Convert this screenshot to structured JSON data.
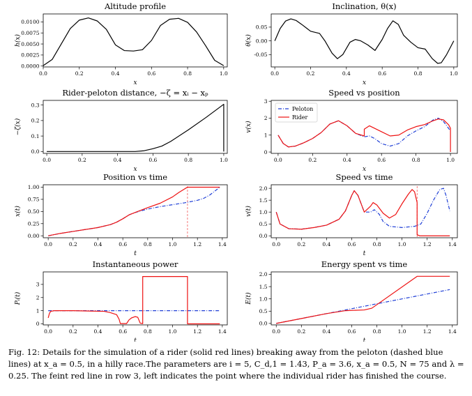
{
  "figure": {
    "caption": "Fig. 12: Details for the simulation of a rider (solid red lines) breaking away from the peloton (dashed blue lines) at x_a = 0.5, in a hilly race.The parameters are i = 5, C_d,1 = 1.43, P_a = 3.6, x_a = 0.5, N = 75 and λ = 0.25. The feint red line in row 3, left indicates the point where the individual rider has finished the course.",
    "colors": {
      "rider": "#ee1111",
      "peloton": "#1f3fd6",
      "single": "#000000"
    }
  },
  "chart_data": [
    {
      "type": "line",
      "title": "Altitude profile",
      "xlabel": "x",
      "ylabel": "h(x)",
      "xlim": [
        0,
        1.02
      ],
      "ylim": [
        -0.0002,
        0.0118
      ],
      "xticks": [
        0.0,
        0.2,
        0.4,
        0.6,
        0.8,
        1.0
      ],
      "yticks": [
        0.0,
        0.0025,
        0.005,
        0.0075,
        0.01
      ],
      "series": [
        {
          "x": [
            0,
            0.05,
            0.1,
            0.15,
            0.2,
            0.25,
            0.3,
            0.35,
            0.4,
            0.45,
            0.5,
            0.55,
            0.6,
            0.65,
            0.7,
            0.75,
            0.8,
            0.85,
            0.9,
            0.95,
            1.0
          ],
          "y": [
            0.0001,
            0.0015,
            0.005,
            0.0085,
            0.0104,
            0.0109,
            0.0102,
            0.0083,
            0.0048,
            0.0035,
            0.0034,
            0.0037,
            0.0058,
            0.0092,
            0.0106,
            0.0108,
            0.0099,
            0.0077,
            0.0046,
            0.0013,
            0.0001
          ]
        }
      ]
    },
    {
      "type": "line",
      "title": "Inclination, θ(x)",
      "xlabel": "x",
      "ylabel": "θ(x)",
      "xlim": [
        -0.02,
        1.02
      ],
      "ylim": [
        -0.095,
        0.098
      ],
      "xticks": [
        0.0,
        0.2,
        0.4,
        0.6,
        0.8,
        1.0
      ],
      "yticks": [
        -0.05,
        0.0,
        0.05
      ],
      "series": [
        {
          "x": [
            0,
            0.03,
            0.06,
            0.09,
            0.12,
            0.15,
            0.18,
            0.2,
            0.25,
            0.28,
            0.32,
            0.35,
            0.38,
            0.42,
            0.45,
            0.48,
            0.52,
            0.56,
            0.6,
            0.63,
            0.66,
            0.69,
            0.72,
            0.76,
            0.8,
            0.84,
            0.88,
            0.91,
            0.93,
            0.96,
            1.0
          ],
          "y": [
            0.0,
            0.045,
            0.072,
            0.08,
            0.074,
            0.06,
            0.045,
            0.035,
            0.027,
            0.0,
            -0.045,
            -0.065,
            -0.05,
            -0.005,
            0.005,
            0.0,
            -0.015,
            -0.035,
            0.005,
            0.045,
            0.073,
            0.06,
            0.02,
            -0.005,
            -0.025,
            -0.03,
            -0.065,
            -0.082,
            -0.08,
            -0.05,
            0.0
          ]
        }
      ]
    },
    {
      "type": "line",
      "title": "Rider-peloton distance, −ζ = xᵢ − xₚ",
      "xlabel": "x",
      "ylabel": "−ζ(x)",
      "xlim": [
        -0.02,
        1.02
      ],
      "ylim": [
        -0.012,
        0.33
      ],
      "xticks": [
        0.0,
        0.2,
        0.4,
        0.6,
        0.8,
        1.0
      ],
      "yticks": [
        0.0,
        0.1,
        0.2,
        0.3
      ],
      "series": [
        {
          "x": [
            0,
            0.3,
            0.5,
            0.55,
            0.6,
            0.65,
            0.7,
            0.8,
            0.9,
            1.0,
            1.0
          ],
          "y": [
            0.0,
            0.0,
            0.0,
            0.005,
            0.018,
            0.035,
            0.065,
            0.14,
            0.22,
            0.305,
            0.0
          ]
        }
      ]
    },
    {
      "type": "line",
      "title": "Speed vs position",
      "xlabel": "x",
      "ylabel": "v(x)",
      "xlim": [
        -0.04,
        1.04
      ],
      "ylim": [
        -0.08,
        3.05
      ],
      "xticks": [
        0.0,
        0.2,
        0.4,
        0.6,
        0.8,
        1.0
      ],
      "yticks": [
        0,
        1,
        2,
        3
      ],
      "legend": {
        "placement": "top-left",
        "entries": [
          "Peloton",
          "Rider"
        ]
      },
      "series": [
        {
          "name": "Peloton",
          "style": "dashdot",
          "x": [
            0,
            0.03,
            0.06,
            0.1,
            0.15,
            0.2,
            0.25,
            0.3,
            0.35,
            0.4,
            0.45,
            0.5,
            0.53,
            0.56,
            0.6,
            0.65,
            0.7,
            0.75,
            0.8,
            0.85,
            0.9,
            0.93,
            0.96,
            1.0
          ],
          "y": [
            1.0,
            0.5,
            0.3,
            0.35,
            0.55,
            0.8,
            1.15,
            1.65,
            1.85,
            1.55,
            1.1,
            0.9,
            0.95,
            0.8,
            0.5,
            0.35,
            0.5,
            0.95,
            1.25,
            1.5,
            1.9,
            2.0,
            1.8,
            1.25
          ]
        },
        {
          "name": "Rider",
          "style": "solid",
          "x": [
            0,
            0.03,
            0.06,
            0.1,
            0.15,
            0.2,
            0.25,
            0.3,
            0.35,
            0.4,
            0.45,
            0.5,
            0.5,
            0.53,
            0.56,
            0.6,
            0.65,
            0.7,
            0.75,
            0.8,
            0.85,
            0.9,
            0.93,
            0.96,
            0.99,
            1.0,
            1.0
          ],
          "y": [
            1.0,
            0.5,
            0.3,
            0.35,
            0.55,
            0.8,
            1.15,
            1.65,
            1.85,
            1.55,
            1.1,
            0.95,
            1.35,
            1.55,
            1.4,
            1.2,
            0.95,
            1.0,
            1.3,
            1.5,
            1.62,
            1.85,
            1.95,
            1.9,
            1.6,
            1.4,
            0.0
          ]
        }
      ]
    },
    {
      "type": "line",
      "title": "Position vs time",
      "xlabel": "t",
      "ylabel": "x(t)",
      "xlim": [
        -0.04,
        1.44
      ],
      "ylim": [
        -0.04,
        1.05
      ],
      "xticks": [
        0.0,
        0.2,
        0.4,
        0.6,
        0.8,
        1.0,
        1.2,
        1.4
      ],
      "yticks": [
        0.0,
        0.25,
        0.5,
        0.75,
        1.0
      ],
      "finish_marker_t": 1.12,
      "series": [
        {
          "name": "Peloton",
          "style": "dashdot",
          "x": [
            0,
            0.1,
            0.2,
            0.3,
            0.4,
            0.5,
            0.55,
            0.6,
            0.65,
            0.7,
            0.8,
            0.9,
            1.0,
            1.1,
            1.2,
            1.25,
            1.3,
            1.35,
            1.38
          ],
          "y": [
            0.0,
            0.05,
            0.09,
            0.13,
            0.17,
            0.23,
            0.28,
            0.35,
            0.43,
            0.48,
            0.55,
            0.6,
            0.64,
            0.68,
            0.73,
            0.77,
            0.84,
            0.94,
            1.0
          ]
        },
        {
          "name": "Rider",
          "style": "solid",
          "x": [
            0,
            0.1,
            0.2,
            0.3,
            0.4,
            0.5,
            0.55,
            0.6,
            0.65,
            0.7,
            0.8,
            0.9,
            1.0,
            1.05,
            1.1,
            1.12,
            1.38
          ],
          "y": [
            0.0,
            0.05,
            0.09,
            0.13,
            0.17,
            0.23,
            0.28,
            0.35,
            0.43,
            0.48,
            0.58,
            0.67,
            0.8,
            0.89,
            0.97,
            1.0,
            1.0
          ]
        }
      ]
    },
    {
      "type": "line",
      "title": "Speed vs time",
      "xlabel": "t",
      "ylabel": "v(t)",
      "xlim": [
        -0.04,
        1.44
      ],
      "ylim": [
        -0.08,
        2.15
      ],
      "xticks": [
        0.0,
        0.2,
        0.4,
        0.6,
        0.8,
        1.0,
        1.2,
        1.4
      ],
      "yticks": [
        0.0,
        0.5,
        1.0,
        1.5,
        2.0
      ],
      "finish_marker_t": 1.12,
      "series": [
        {
          "name": "Peloton",
          "style": "dashdot",
          "x": [
            0,
            0.03,
            0.1,
            0.2,
            0.3,
            0.4,
            0.5,
            0.55,
            0.6,
            0.62,
            0.65,
            0.7,
            0.75,
            0.78,
            0.82,
            0.85,
            0.9,
            1.0,
            1.1,
            1.15,
            1.2,
            1.25,
            1.3,
            1.33,
            1.35,
            1.38
          ],
          "y": [
            1.0,
            0.5,
            0.3,
            0.28,
            0.35,
            0.45,
            0.7,
            1.05,
            1.7,
            1.9,
            1.7,
            1.0,
            1.0,
            1.1,
            0.9,
            0.6,
            0.4,
            0.35,
            0.4,
            0.5,
            0.95,
            1.5,
            1.95,
            2.0,
            1.7,
            1.05
          ]
        },
        {
          "name": "Rider",
          "style": "solid",
          "x": [
            0,
            0.03,
            0.1,
            0.2,
            0.3,
            0.4,
            0.5,
            0.55,
            0.6,
            0.62,
            0.65,
            0.7,
            0.75,
            0.77,
            0.8,
            0.85,
            0.9,
            0.95,
            1.0,
            1.05,
            1.08,
            1.1,
            1.12,
            1.12,
            1.14,
            1.38
          ],
          "y": [
            1.0,
            0.5,
            0.3,
            0.28,
            0.35,
            0.45,
            0.7,
            1.05,
            1.7,
            1.9,
            1.7,
            1.0,
            1.25,
            1.4,
            1.3,
            0.95,
            0.75,
            0.9,
            1.35,
            1.75,
            1.95,
            1.85,
            1.4,
            0.05,
            0.0,
            0.0
          ]
        }
      ]
    },
    {
      "type": "line",
      "title": "Instantaneous power",
      "xlabel": "t",
      "ylabel": "Pᵢ(t)",
      "xlim": [
        -0.04,
        1.44
      ],
      "ylim": [
        -0.08,
        3.95
      ],
      "xticks": [
        0.0,
        0.2,
        0.4,
        0.6,
        0.8,
        1.0,
        1.2,
        1.4
      ],
      "yticks": [
        0,
        1,
        2,
        3
      ],
      "series": [
        {
          "name": "Peloton",
          "style": "dashdot",
          "x": [
            0,
            0.2,
            0.4,
            0.6,
            0.8,
            1.0,
            1.2,
            1.38
          ],
          "y": [
            1.0,
            1.0,
            1.0,
            1.0,
            1.0,
            1.0,
            1.0,
            1.0
          ]
        },
        {
          "name": "Rider",
          "style": "solid",
          "x": [
            0,
            0.01,
            0.02,
            0.05,
            0.2,
            0.45,
            0.5,
            0.55,
            0.57,
            0.58,
            0.63,
            0.65,
            0.67,
            0.7,
            0.72,
            0.74,
            0.76,
            0.76,
            1.12,
            1.12,
            1.38
          ],
          "y": [
            0.45,
            0.8,
            0.95,
            1.0,
            1.0,
            0.95,
            0.85,
            0.7,
            0.35,
            0.02,
            0.02,
            0.3,
            0.45,
            0.55,
            0.5,
            0.05,
            0.02,
            3.6,
            3.6,
            0.0,
            0.0
          ]
        }
      ]
    },
    {
      "type": "line",
      "title": "Energy spent vs time",
      "xlabel": "t",
      "ylabel": "E(t)",
      "xlim": [
        -0.04,
        1.44
      ],
      "ylim": [
        -0.06,
        2.1
      ],
      "xticks": [
        0.0,
        0.2,
        0.4,
        0.6,
        0.8,
        1.0,
        1.2,
        1.4
      ],
      "yticks": [
        0.0,
        0.5,
        1.0,
        1.5,
        2.0
      ],
      "series": [
        {
          "name": "Peloton",
          "style": "dashdot",
          "x": [
            0,
            0.2,
            0.4,
            0.6,
            0.8,
            1.0,
            1.2,
            1.38
          ],
          "y": [
            0.0,
            0.2,
            0.4,
            0.6,
            0.8,
            1.0,
            1.2,
            1.38
          ]
        },
        {
          "name": "Rider",
          "style": "solid",
          "x": [
            0,
            0.2,
            0.4,
            0.55,
            0.7,
            0.76,
            1.12,
            1.38
          ],
          "y": [
            0.0,
            0.2,
            0.4,
            0.52,
            0.55,
            0.62,
            1.92,
            1.92
          ]
        }
      ]
    }
  ]
}
